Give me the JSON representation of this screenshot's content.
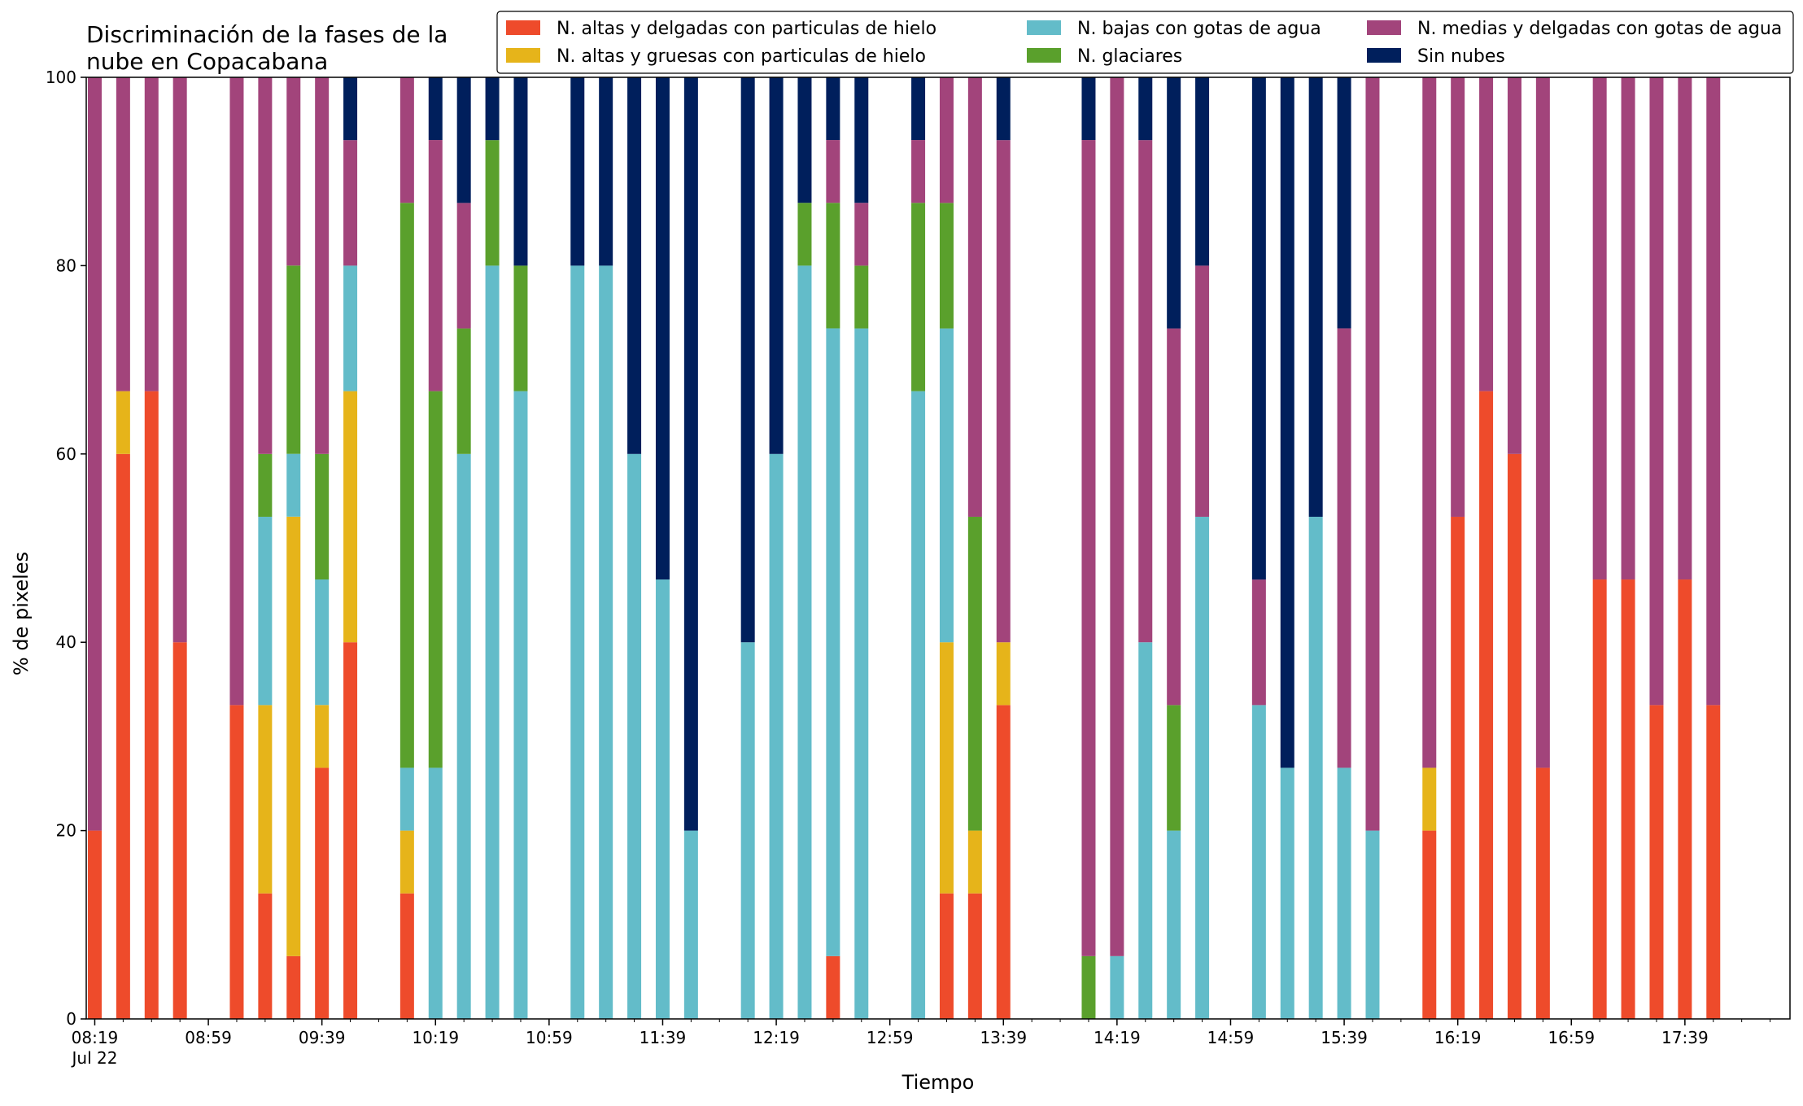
{
  "chart_data": {
    "type": "bar",
    "stacked": true,
    "title": "Discriminación de la fases de la\nnube en Copacabana",
    "xlabel": "Tiempo",
    "ylabel": "% de pixeles",
    "ylim": [
      0,
      100
    ],
    "yticks": [
      0,
      20,
      40,
      60,
      80,
      100
    ],
    "xticks": [
      {
        "time": "08:19",
        "label": "08:19",
        "sublabel": "Jul 22"
      },
      {
        "time": "08:59",
        "label": "08:59"
      },
      {
        "time": "09:39",
        "label": "09:39"
      },
      {
        "time": "10:19",
        "label": "10:19"
      },
      {
        "time": "10:59",
        "label": "10:59"
      },
      {
        "time": "11:39",
        "label": "11:39"
      },
      {
        "time": "12:19",
        "label": "12:19"
      },
      {
        "time": "12:59",
        "label": "12:59"
      },
      {
        "time": "13:39",
        "label": "13:39"
      },
      {
        "time": "14:19",
        "label": "14:19"
      },
      {
        "time": "14:59",
        "label": "14:59"
      },
      {
        "time": "15:39",
        "label": "15:39"
      },
      {
        "time": "16:19",
        "label": "16:19"
      },
      {
        "time": "16:59",
        "label": "16:59"
      },
      {
        "time": "17:39",
        "label": "17:39"
      }
    ],
    "minor_tick_interval_minutes": 10,
    "xrange": [
      "08:16",
      "18:16"
    ],
    "legend": {
      "position": "top-right",
      "columns": 3
    },
    "series": [
      {
        "name": "N. altas y delgadas con particulas de hielo",
        "color": "#ee4b2b"
      },
      {
        "name": "N. altas y gruesas con particulas de hielo",
        "color": "#e6b41a"
      },
      {
        "name": "N. bajas con gotas de agua",
        "color": "#63bcc9"
      },
      {
        "name": "N. glaciares",
        "color": "#5aa02c"
      },
      {
        "name": "N. medias y delgadas con gotas de agua",
        "color": "#a2447b"
      },
      {
        "name": "Sin nubes",
        "color": "#001f5c"
      }
    ],
    "series_order_note": "values arrays follow series order",
    "bars": [
      {
        "time": "08:19",
        "values": [
          20,
          0,
          0,
          0,
          80,
          0
        ]
      },
      {
        "time": "08:29",
        "values": [
          60,
          6.67,
          0,
          0,
          33.33,
          0
        ]
      },
      {
        "time": "08:39",
        "values": [
          66.67,
          0,
          0,
          0,
          33.33,
          0
        ]
      },
      {
        "time": "08:49",
        "values": [
          40,
          0,
          0,
          0,
          60,
          0
        ]
      },
      {
        "time": "09:09",
        "values": [
          33.33,
          0,
          0,
          0,
          66.67,
          0
        ]
      },
      {
        "time": "09:19",
        "values": [
          13.33,
          20,
          20,
          6.67,
          40,
          0
        ]
      },
      {
        "time": "09:29",
        "values": [
          6.67,
          46.67,
          6.67,
          20,
          20,
          0
        ]
      },
      {
        "time": "09:39",
        "values": [
          26.67,
          6.67,
          13.33,
          13.33,
          40,
          0
        ]
      },
      {
        "time": "09:49",
        "values": [
          40,
          26.67,
          13.33,
          0,
          13.33,
          6.67
        ]
      },
      {
        "time": "10:09",
        "values": [
          13.33,
          6.67,
          6.67,
          60,
          13.33,
          0
        ]
      },
      {
        "time": "10:19",
        "values": [
          0,
          0,
          26.67,
          40,
          26.67,
          6.67
        ]
      },
      {
        "time": "10:29",
        "values": [
          0,
          0,
          60,
          13.33,
          13.33,
          13.33
        ]
      },
      {
        "time": "10:39",
        "values": [
          0,
          0,
          80,
          13.33,
          0,
          6.67
        ]
      },
      {
        "time": "10:49",
        "values": [
          0,
          0,
          66.67,
          13.33,
          0,
          20
        ]
      },
      {
        "time": "11:09",
        "values": [
          0,
          0,
          80,
          0,
          0,
          20
        ]
      },
      {
        "time": "11:19",
        "values": [
          0,
          0,
          80,
          0,
          0,
          20
        ]
      },
      {
        "time": "11:29",
        "values": [
          0,
          0,
          60,
          0,
          0,
          40
        ]
      },
      {
        "time": "11:39",
        "values": [
          0,
          0,
          46.67,
          0,
          0,
          53.33
        ]
      },
      {
        "time": "11:49",
        "values": [
          0,
          0,
          20,
          0,
          0,
          80
        ]
      },
      {
        "time": "12:09",
        "values": [
          0,
          0,
          40,
          0,
          0,
          60
        ]
      },
      {
        "time": "12:19",
        "values": [
          0,
          0,
          60,
          0,
          0,
          40
        ]
      },
      {
        "time": "12:29",
        "values": [
          0,
          0,
          80,
          6.67,
          0,
          13.33
        ]
      },
      {
        "time": "12:39",
        "values": [
          6.67,
          0,
          66.67,
          13.33,
          6.67,
          6.67
        ]
      },
      {
        "time": "12:49",
        "values": [
          0,
          0,
          73.33,
          6.67,
          6.67,
          13.33
        ]
      },
      {
        "time": "13:09",
        "values": [
          0,
          0,
          66.67,
          20,
          6.67,
          6.67
        ]
      },
      {
        "time": "13:19",
        "values": [
          13.33,
          26.67,
          33.33,
          13.33,
          13.33,
          0
        ]
      },
      {
        "time": "13:29",
        "values": [
          13.33,
          6.67,
          0,
          33.33,
          46.67,
          0
        ]
      },
      {
        "time": "13:39",
        "values": [
          33.33,
          6.67,
          0,
          0,
          53.33,
          6.67
        ]
      },
      {
        "time": "14:09",
        "values": [
          0,
          0,
          0,
          6.67,
          86.67,
          6.67
        ]
      },
      {
        "time": "14:19",
        "values": [
          0,
          0,
          6.67,
          0,
          93.33,
          0
        ]
      },
      {
        "time": "14:29",
        "values": [
          0,
          0,
          40,
          0,
          53.33,
          6.67
        ]
      },
      {
        "time": "14:39",
        "values": [
          0,
          0,
          20,
          13.33,
          40,
          26.67
        ]
      },
      {
        "time": "14:49",
        "values": [
          0,
          0,
          53.33,
          0,
          26.67,
          20
        ]
      },
      {
        "time": "15:09",
        "values": [
          0,
          0,
          33.33,
          0,
          13.33,
          53.33
        ]
      },
      {
        "time": "15:19",
        "values": [
          0,
          0,
          26.67,
          0,
          0,
          73.33
        ]
      },
      {
        "time": "15:29",
        "values": [
          0,
          0,
          53.33,
          0,
          0,
          46.67
        ]
      },
      {
        "time": "15:39",
        "values": [
          0,
          0,
          26.67,
          0,
          46.67,
          26.67
        ]
      },
      {
        "time": "15:49",
        "values": [
          0,
          0,
          20,
          0,
          80,
          0
        ]
      },
      {
        "time": "16:09",
        "values": [
          20,
          6.67,
          0,
          0,
          73.33,
          0
        ]
      },
      {
        "time": "16:19",
        "values": [
          53.33,
          0,
          0,
          0,
          46.67,
          0
        ]
      },
      {
        "time": "16:29",
        "values": [
          66.67,
          0,
          0,
          0,
          33.33,
          0
        ]
      },
      {
        "time": "16:39",
        "values": [
          60,
          0,
          0,
          0,
          40,
          0
        ]
      },
      {
        "time": "16:49",
        "values": [
          26.67,
          0,
          0,
          0,
          73.33,
          0
        ]
      },
      {
        "time": "17:09",
        "values": [
          46.67,
          0,
          0,
          0,
          53.33,
          0
        ]
      },
      {
        "time": "17:19",
        "values": [
          46.67,
          0,
          0,
          0,
          53.33,
          0
        ]
      },
      {
        "time": "17:29",
        "values": [
          33.33,
          0,
          0,
          0,
          66.67,
          0
        ]
      },
      {
        "time": "17:39",
        "values": [
          46.67,
          0,
          0,
          0,
          53.33,
          0
        ]
      },
      {
        "time": "17:49",
        "values": [
          33.33,
          0,
          0,
          0,
          66.67,
          0
        ]
      }
    ]
  }
}
